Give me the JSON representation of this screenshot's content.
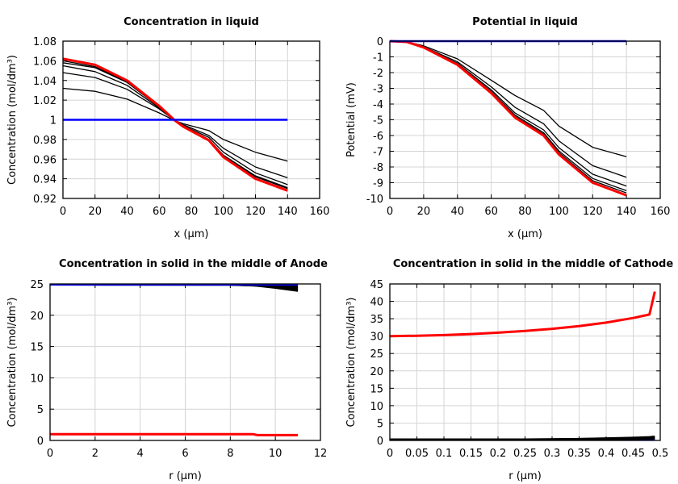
{
  "chart_data": [
    {
      "type": "line",
      "title": "Concentration in liquid",
      "xlabel": "x (µm)",
      "ylabel": "Concentration (mol/dm³)",
      "xlim": [
        0,
        160
      ],
      "ylim": [
        0.92,
        1.08
      ],
      "xticks": [
        "0",
        "20",
        "40",
        "60",
        "80",
        "100",
        "120",
        "140",
        "160"
      ],
      "yticks": [
        "0.92",
        "0.94",
        "0.96",
        "0.98",
        "1",
        "1.02",
        "1.04",
        "1.06",
        "1.08"
      ],
      "grid": true,
      "x": [
        0,
        20,
        40,
        60,
        70,
        75,
        91,
        100,
        120,
        140
      ],
      "series": [
        {
          "color": "#000000",
          "values": [
            1.032,
            1.029,
            1.021,
            1.007,
            0.999,
            0.996,
            0.989,
            0.98,
            0.967,
            0.958
          ]
        },
        {
          "color": "#000000",
          "values": [
            1.048,
            1.043,
            1.031,
            1.011,
            0.999,
            0.995,
            0.984,
            0.971,
            0.952,
            0.941
          ]
        },
        {
          "color": "#000000",
          "values": [
            1.055,
            1.049,
            1.035,
            1.012,
            0.999,
            0.994,
            0.982,
            0.967,
            0.946,
            0.934
          ]
        },
        {
          "color": "#000000",
          "values": [
            1.058,
            1.053,
            1.038,
            1.013,
            0.999,
            0.993,
            0.98,
            0.964,
            0.943,
            0.931
          ]
        },
        {
          "color": "#000000",
          "values": [
            1.06,
            1.054,
            1.039,
            1.014,
            0.999,
            0.993,
            0.98,
            0.963,
            0.942,
            0.93
          ]
        },
        {
          "color": "#ff0000",
          "values": [
            1.062,
            1.056,
            1.04,
            1.014,
            0.999,
            0.993,
            0.979,
            0.962,
            0.94,
            0.928
          ]
        },
        {
          "color": "#0000ff",
          "values": [
            1,
            1,
            1,
            1,
            1,
            1,
            1,
            1,
            1,
            1
          ]
        }
      ]
    },
    {
      "type": "line",
      "title": "Potential in liquid",
      "xlabel": "x (µm)",
      "ylabel": "Potential (mV)",
      "xlim": [
        0,
        160
      ],
      "ylim": [
        -10,
        0
      ],
      "xticks": [
        "0",
        "20",
        "40",
        "60",
        "80",
        "100",
        "120",
        "140",
        "160"
      ],
      "yticks": [
        "-10",
        "-9",
        "-8",
        "-7",
        "-6",
        "-5",
        "-4",
        "-3",
        "-2",
        "-1",
        "0"
      ],
      "grid": true,
      "x": [
        0,
        10,
        20,
        40,
        60,
        74,
        91,
        100,
        120,
        140
      ],
      "series": [
        {
          "color": "#000000",
          "values": [
            0,
            -0.04,
            -0.3,
            -1.13,
            -2.48,
            -3.45,
            -4.4,
            -5.4,
            -6.75,
            -7.35
          ]
        },
        {
          "color": "#000000",
          "values": [
            0,
            -0.04,
            -0.35,
            -1.32,
            -2.9,
            -4.2,
            -5.25,
            -6.34,
            -7.92,
            -8.65
          ]
        },
        {
          "color": "#000000",
          "values": [
            0,
            -0.05,
            -0.38,
            -1.41,
            -3.1,
            -4.56,
            -5.64,
            -6.77,
            -8.46,
            -9.21
          ]
        },
        {
          "color": "#000000",
          "values": [
            0,
            -0.05,
            -0.39,
            -1.46,
            -3.2,
            -4.7,
            -5.82,
            -6.98,
            -8.73,
            -9.51
          ]
        },
        {
          "color": "#000000",
          "values": [
            0,
            -0.05,
            -0.39,
            -1.48,
            -3.25,
            -4.78,
            -5.91,
            -7.09,
            -8.87,
            -9.65
          ]
        },
        {
          "color": "#ff0000",
          "values": [
            0,
            -0.05,
            -0.4,
            -1.5,
            -3.3,
            -4.85,
            -6.0,
            -7.2,
            -9.0,
            -9.8
          ]
        },
        {
          "color": "#0000ff",
          "values": [
            0,
            0,
            0,
            0,
            0,
            0,
            0,
            0,
            0,
            0
          ]
        }
      ]
    },
    {
      "type": "line",
      "title": "Concentration in solid in the middle of Anode",
      "xlabel": "r (µm)",
      "ylabel": "Concentration (mol/dm³)",
      "xlim": [
        0,
        12
      ],
      "ylim": [
        0,
        25
      ],
      "xticks": [
        "0",
        "2",
        "4",
        "6",
        "8",
        "10",
        "12"
      ],
      "yticks": [
        "0",
        "5",
        "10",
        "15",
        "20",
        "25"
      ],
      "grid": true,
      "x": [
        0,
        8,
        9,
        9.2,
        10,
        11
      ],
      "series": [
        {
          "color": "#000000",
          "values": [
            24.9,
            24.9,
            24.88,
            24.87,
            24.8,
            24.7
          ]
        },
        {
          "color": "#000000",
          "values": [
            24.9,
            24.9,
            24.85,
            24.83,
            24.7,
            24.5
          ]
        },
        {
          "color": "#000000",
          "values": [
            24.9,
            24.9,
            24.82,
            24.8,
            24.6,
            24.3
          ]
        },
        {
          "color": "#000000",
          "values": [
            24.9,
            24.88,
            24.78,
            24.75,
            24.5,
            24.1
          ]
        },
        {
          "color": "#000000",
          "values": [
            24.9,
            24.87,
            24.75,
            24.7,
            24.4,
            23.9
          ]
        },
        {
          "color": "#0000ff",
          "values": [
            24.9,
            24.9,
            24.9,
            24.9,
            24.9,
            24.9
          ]
        },
        {
          "color": "#ff0000",
          "values": [
            1,
            1,
            1,
            0.85,
            0.85,
            0.85
          ]
        }
      ]
    },
    {
      "type": "line",
      "title": "Concentration in solid in the middle of Cathode",
      "xlabel": "r (µm)",
      "ylabel": "Concentration (mol/dm³)",
      "xlim": [
        0,
        0.5
      ],
      "ylim": [
        0,
        45
      ],
      "xticks": [
        "0",
        "0.05",
        "0.1",
        "0.15",
        "0.2",
        "0.25",
        "0.3",
        "0.35",
        "0.4",
        "0.45",
        "0.5"
      ],
      "yticks": [
        "0",
        "5",
        "10",
        "15",
        "20",
        "25",
        "30",
        "35",
        "40",
        "45"
      ],
      "grid": true,
      "x": [
        0,
        0.05,
        0.1,
        0.15,
        0.2,
        0.25,
        0.3,
        0.35,
        0.4,
        0.45,
        0.48,
        0.49
      ],
      "series": [
        {
          "color": "#0000ff",
          "values": [
            0.3,
            0.3,
            0.3,
            0.3,
            0.3,
            0.3,
            0.3,
            0.3,
            0.3,
            0.3,
            0.3,
            0.3
          ]
        },
        {
          "color": "#000000",
          "values": [
            0.3,
            0.3,
            0.3,
            0.3,
            0.3,
            0.3,
            0.3,
            0.35,
            0.4,
            0.45,
            0.5,
            0.55
          ]
        },
        {
          "color": "#000000",
          "values": [
            0.3,
            0.3,
            0.3,
            0.3,
            0.3,
            0.3,
            0.32,
            0.4,
            0.5,
            0.6,
            0.7,
            0.8
          ]
        },
        {
          "color": "#000000",
          "values": [
            0.3,
            0.3,
            0.3,
            0.3,
            0.3,
            0.3,
            0.35,
            0.45,
            0.6,
            0.8,
            0.95,
            1.1
          ]
        },
        {
          "color": "#ff0000",
          "values": [
            30,
            30.1,
            30.3,
            30.6,
            31,
            31.5,
            32.1,
            32.9,
            33.9,
            35.2,
            36.2,
            42.8
          ]
        }
      ]
    }
  ]
}
